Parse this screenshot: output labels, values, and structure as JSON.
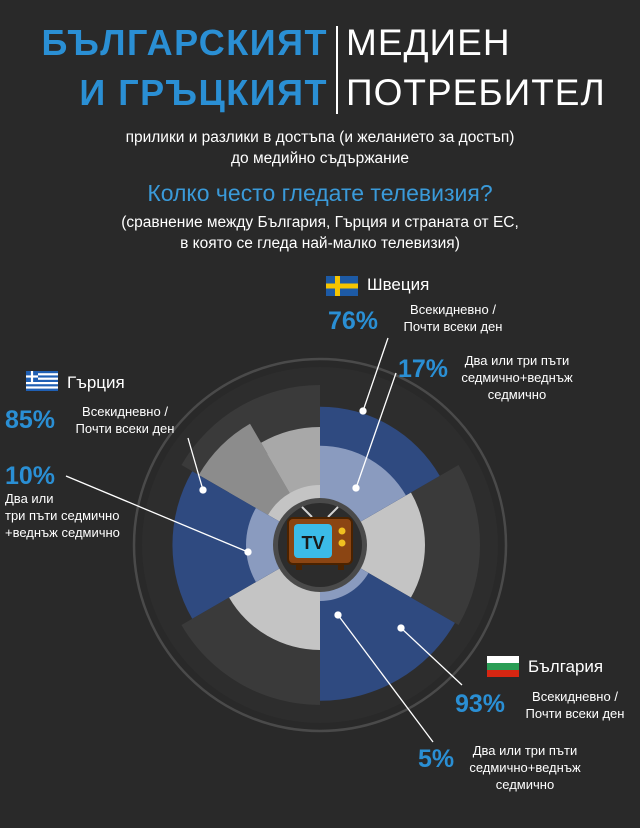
{
  "header": {
    "title_left_line1": "БЪЛГАРСКИЯТ",
    "title_left_line2": "И ГРЪЦКИЯТ",
    "title_right_line1": "МЕДИЕН",
    "title_right_line2": "ПОТРЕБИТЕЛ",
    "subtitle_line1": "прилики и разлики в достъпа (и желанието за достъп)",
    "subtitle_line2": "до медийно съдържание"
  },
  "question": {
    "title": "Колко често гледате телевизия?",
    "sub_line1": "(сравнение между България, Гърция и страната от ЕС,",
    "sub_line2": "в която се гледа най-малко телевизия)"
  },
  "center_icon": {
    "name": "tv-icon",
    "label": "TV"
  },
  "colors": {
    "accent_blue": "#2a8fd4",
    "daily": "#2f4a80",
    "weekly": "#8a9bbf",
    "inner_grey": "#c4c4c4",
    "dark_grey": "#3a3a3a"
  },
  "chart_data": {
    "type": "pie",
    "title": "Колко често гледате телевизия?",
    "categories": [
      "Всекидневно / Почти всеки ден",
      "Два или три пъти седмично+веднъж седмично"
    ],
    "series": [
      {
        "name": "Швеция",
        "flag": "sweden-flag",
        "values": [
          76,
          17
        ]
      },
      {
        "name": "Гърция",
        "flag": "greece-flag",
        "values": [
          85,
          10
        ]
      },
      {
        "name": "България",
        "flag": "bulgaria-flag",
        "values": [
          93,
          5
        ]
      }
    ]
  },
  "callouts": {
    "sweden": {
      "country": "Швеция",
      "daily_pct": "76%",
      "daily_line1": "Всекидневно /",
      "daily_line2": "Почти всеки ден",
      "weekly_pct": "17%",
      "weekly_line1": "Два или три пъти",
      "weekly_line2": "седмично+веднъж",
      "weekly_line3": "седмично"
    },
    "greece": {
      "country": "Гърция",
      "daily_pct": "85%",
      "daily_line1": "Всекидневно /",
      "daily_line2": "Почти всеки ден",
      "weekly_pct": "10%",
      "weekly_line1": "Два или",
      "weekly_line2": "три пъти седмично",
      "weekly_line3": "+веднъж седмично"
    },
    "bulgaria": {
      "country": "България",
      "daily_pct": "93%",
      "daily_line1": "Всекидневно /",
      "daily_line2": "Почти всеки ден",
      "weekly_pct": "5%",
      "weekly_line1": "Два или три пъти",
      "weekly_line2": "седмично+веднъж",
      "weekly_line3": "седмично"
    }
  }
}
